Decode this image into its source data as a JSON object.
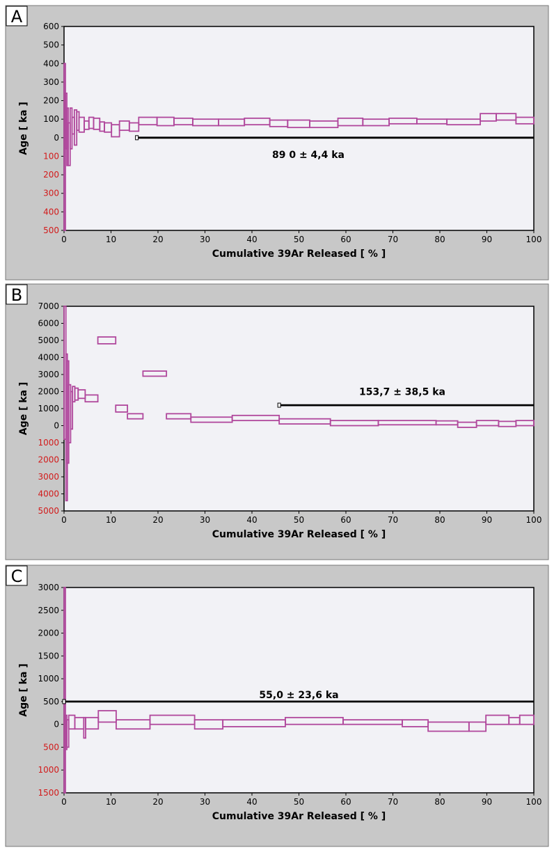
{
  "colors": {
    "panel_bg": "#c8c8c8",
    "plot_bg": "#f2f2f6",
    "step": "#b0479c",
    "neg_label": "#d21a1a",
    "axis": "#000000"
  },
  "chart_data": [
    {
      "type": "step",
      "panel_label": "A",
      "xlabel": "Cumulative 39Ar Released [ % ]",
      "ylabel": "Age [ ka ]",
      "xlim": [
        0,
        100
      ],
      "ylim": [
        -500,
        600
      ],
      "xticks": [
        "0",
        "10",
        "20",
        "30",
        "40",
        "50",
        "60",
        "70",
        "80",
        "90",
        "100"
      ],
      "yticks": [
        {
          "v": 600,
          "t": "600",
          "neg": false
        },
        {
          "v": 500,
          "t": "500",
          "neg": false
        },
        {
          "v": 400,
          "t": "400",
          "neg": false
        },
        {
          "v": 300,
          "t": "300",
          "neg": false
        },
        {
          "v": 200,
          "t": "200",
          "neg": false
        },
        {
          "v": 100,
          "t": "100",
          "neg": false
        },
        {
          "v": 0,
          "t": "0",
          "neg": false
        },
        {
          "v": -100,
          "t": "100",
          "neg": true
        },
        {
          "v": -200,
          "t": "200",
          "neg": true
        },
        {
          "v": -300,
          "t": "300",
          "neg": true
        },
        {
          "v": -400,
          "t": "400",
          "neg": true
        },
        {
          "v": -500,
          "t": "500",
          "neg": true
        }
      ],
      "plateau": {
        "x": [
          15.5,
          100
        ],
        "age": 0,
        "label": "89 0 ± 4,4 ka",
        "label_x": 52,
        "label_age": -90
      },
      "steps": [
        [
          0.0,
          0.3,
          -500,
          400
        ],
        [
          0.3,
          0.6,
          -60,
          240
        ],
        [
          0.6,
          0.9,
          -150,
          160
        ],
        [
          0.9,
          1.3,
          -150,
          80
        ],
        [
          1.3,
          1.7,
          -60,
          160
        ],
        [
          1.7,
          2.2,
          20,
          110
        ],
        [
          2.2,
          2.7,
          -40,
          150
        ],
        [
          2.7,
          3.2,
          40,
          140
        ],
        [
          3.2,
          4.3,
          30,
          110
        ],
        [
          4.3,
          5.3,
          45,
          90
        ],
        [
          5.3,
          6.3,
          50,
          110
        ],
        [
          6.3,
          7.6,
          45,
          105
        ],
        [
          7.6,
          8.6,
          35,
          85
        ],
        [
          8.6,
          10.1,
          30,
          80
        ],
        [
          10.1,
          11.8,
          5,
          70
        ],
        [
          11.8,
          13.9,
          40,
          90
        ],
        [
          13.9,
          15.9,
          35,
          80
        ],
        [
          15.9,
          19.8,
          70,
          110
        ],
        [
          19.8,
          23.4,
          65,
          110
        ],
        [
          23.4,
          27.4,
          70,
          105
        ],
        [
          27.4,
          32.9,
          65,
          100
        ],
        [
          32.9,
          38.4,
          65,
          100
        ],
        [
          38.4,
          43.8,
          70,
          105
        ],
        [
          43.8,
          47.6,
          60,
          95
        ],
        [
          47.6,
          52.3,
          55,
          95
        ],
        [
          52.3,
          58.3,
          55,
          90
        ],
        [
          58.3,
          63.6,
          65,
          105
        ],
        [
          63.6,
          69.2,
          65,
          100
        ],
        [
          69.2,
          75.1,
          75,
          105
        ],
        [
          75.1,
          81.5,
          75,
          100
        ],
        [
          81.5,
          88.6,
          70,
          100
        ],
        [
          88.6,
          92.0,
          90,
          130
        ],
        [
          92.0,
          96.2,
          95,
          130
        ],
        [
          96.2,
          100.0,
          75,
          110
        ]
      ]
    },
    {
      "type": "step",
      "panel_label": "B",
      "xlabel": "Cumulative 39Ar Released [ % ]",
      "ylabel": "Age [ ka ]",
      "xlim": [
        0,
        100
      ],
      "ylim": [
        -5000,
        7000
      ],
      "xticks": [
        "0",
        "10",
        "20",
        "30",
        "40",
        "50",
        "60",
        "70",
        "80",
        "90",
        "100"
      ],
      "yticks": [
        {
          "v": 7000,
          "t": "7000",
          "neg": false
        },
        {
          "v": 6000,
          "t": "6000",
          "neg": false
        },
        {
          "v": 5000,
          "t": "5000",
          "neg": false
        },
        {
          "v": 4000,
          "t": "4000",
          "neg": false
        },
        {
          "v": 3000,
          "t": "3000",
          "neg": false
        },
        {
          "v": 2000,
          "t": "2000",
          "neg": false
        },
        {
          "v": 1000,
          "t": "1000",
          "neg": false
        },
        {
          "v": 0,
          "t": "0",
          "neg": false
        },
        {
          "v": -1000,
          "t": "1000",
          "neg": true
        },
        {
          "v": -2000,
          "t": "2000",
          "neg": true
        },
        {
          "v": -3000,
          "t": "3000",
          "neg": true
        },
        {
          "v": -4000,
          "t": "4000",
          "neg": true
        },
        {
          "v": -5000,
          "t": "5000",
          "neg": true
        }
      ],
      "plateau": {
        "x": [
          45.8,
          100
        ],
        "age": 1200,
        "label": "153,7 ± 38,5 ka",
        "label_x": 72,
        "label_age": 2000
      },
      "steps": [
        [
          0.0,
          0.4,
          -800,
          7000
        ],
        [
          0.4,
          0.7,
          -4400,
          4200
        ],
        [
          0.7,
          1.0,
          -2200,
          3800
        ],
        [
          1.0,
          1.4,
          -1000,
          2400
        ],
        [
          1.4,
          1.8,
          -200,
          2000
        ],
        [
          1.8,
          2.3,
          1400,
          2300
        ],
        [
          2.3,
          3.0,
          1500,
          2200
        ],
        [
          3.0,
          4.5,
          1600,
          2100
        ],
        [
          4.5,
          7.2,
          1400,
          1800
        ],
        [
          7.2,
          11.0,
          4800,
          5200
        ],
        [
          11.0,
          13.5,
          800,
          1200
        ],
        [
          13.5,
          16.8,
          400,
          700
        ],
        [
          16.8,
          21.8,
          2900,
          3200
        ],
        [
          21.8,
          27.0,
          400,
          700
        ],
        [
          27.0,
          35.8,
          200,
          500
        ],
        [
          35.8,
          45.8,
          300,
          600
        ],
        [
          45.8,
          56.7,
          100,
          400
        ],
        [
          56.7,
          66.9,
          0,
          300
        ],
        [
          66.9,
          79.2,
          50,
          300
        ],
        [
          79.2,
          83.8,
          50,
          280
        ],
        [
          83.8,
          87.8,
          -100,
          200
        ],
        [
          87.8,
          92.5,
          0,
          300
        ],
        [
          92.5,
          96.2,
          -50,
          250
        ],
        [
          96.2,
          100.0,
          0,
          300
        ]
      ]
    },
    {
      "type": "step",
      "panel_label": "C",
      "xlabel": "Cumulative 39Ar Released [ % ]",
      "ylabel": "Age [ ka ]",
      "xlim": [
        0,
        100
      ],
      "ylim": [
        -1500,
        3000
      ],
      "xticks": [
        "0",
        "10",
        "20",
        "30",
        "40",
        "50",
        "60",
        "70",
        "80",
        "90",
        "100"
      ],
      "yticks": [
        {
          "v": 3000,
          "t": "3000",
          "neg": false
        },
        {
          "v": 2500,
          "t": "2500",
          "neg": false
        },
        {
          "v": 2000,
          "t": "2000",
          "neg": false
        },
        {
          "v": 1500,
          "t": "1500",
          "neg": false
        },
        {
          "v": 1000,
          "t": "1000",
          "neg": false
        },
        {
          "v": 500,
          "t": "500",
          "neg": false
        },
        {
          "v": 0,
          "t": "0",
          "neg": false
        },
        {
          "v": -500,
          "t": "500",
          "neg": true
        },
        {
          "v": -1000,
          "t": "1000",
          "neg": true
        },
        {
          "v": -1500,
          "t": "1500",
          "neg": true
        }
      ],
      "plateau": {
        "x": [
          0,
          100
        ],
        "age": 500,
        "label": "55,0 ± 23,6 ka",
        "label_x": 50,
        "label_age": 650
      },
      "steps": [
        [
          0.0,
          0.3,
          -1500,
          3000
        ],
        [
          0.3,
          0.6,
          -550,
          200
        ],
        [
          0.6,
          1.0,
          -500,
          100
        ],
        [
          1.0,
          2.3,
          -100,
          200
        ],
        [
          2.3,
          4.2,
          -100,
          150
        ],
        [
          4.2,
          4.6,
          -300,
          150
        ],
        [
          4.6,
          7.3,
          -100,
          150
        ],
        [
          7.3,
          11.1,
          50,
          300
        ],
        [
          11.1,
          18.3,
          -100,
          100
        ],
        [
          18.3,
          27.8,
          0,
          200
        ],
        [
          27.8,
          33.8,
          -100,
          100
        ],
        [
          33.8,
          47.1,
          -50,
          100
        ],
        [
          47.1,
          59.4,
          0,
          150
        ],
        [
          59.4,
          72.0,
          0,
          100
        ],
        [
          72.0,
          77.5,
          -50,
          100
        ],
        [
          77.5,
          86.2,
          -150,
          50
        ],
        [
          86.2,
          89.8,
          -150,
          50
        ],
        [
          89.8,
          94.7,
          0,
          200
        ],
        [
          94.7,
          97.0,
          0,
          150
        ],
        [
          97.0,
          100.0,
          0,
          200
        ]
      ]
    }
  ]
}
